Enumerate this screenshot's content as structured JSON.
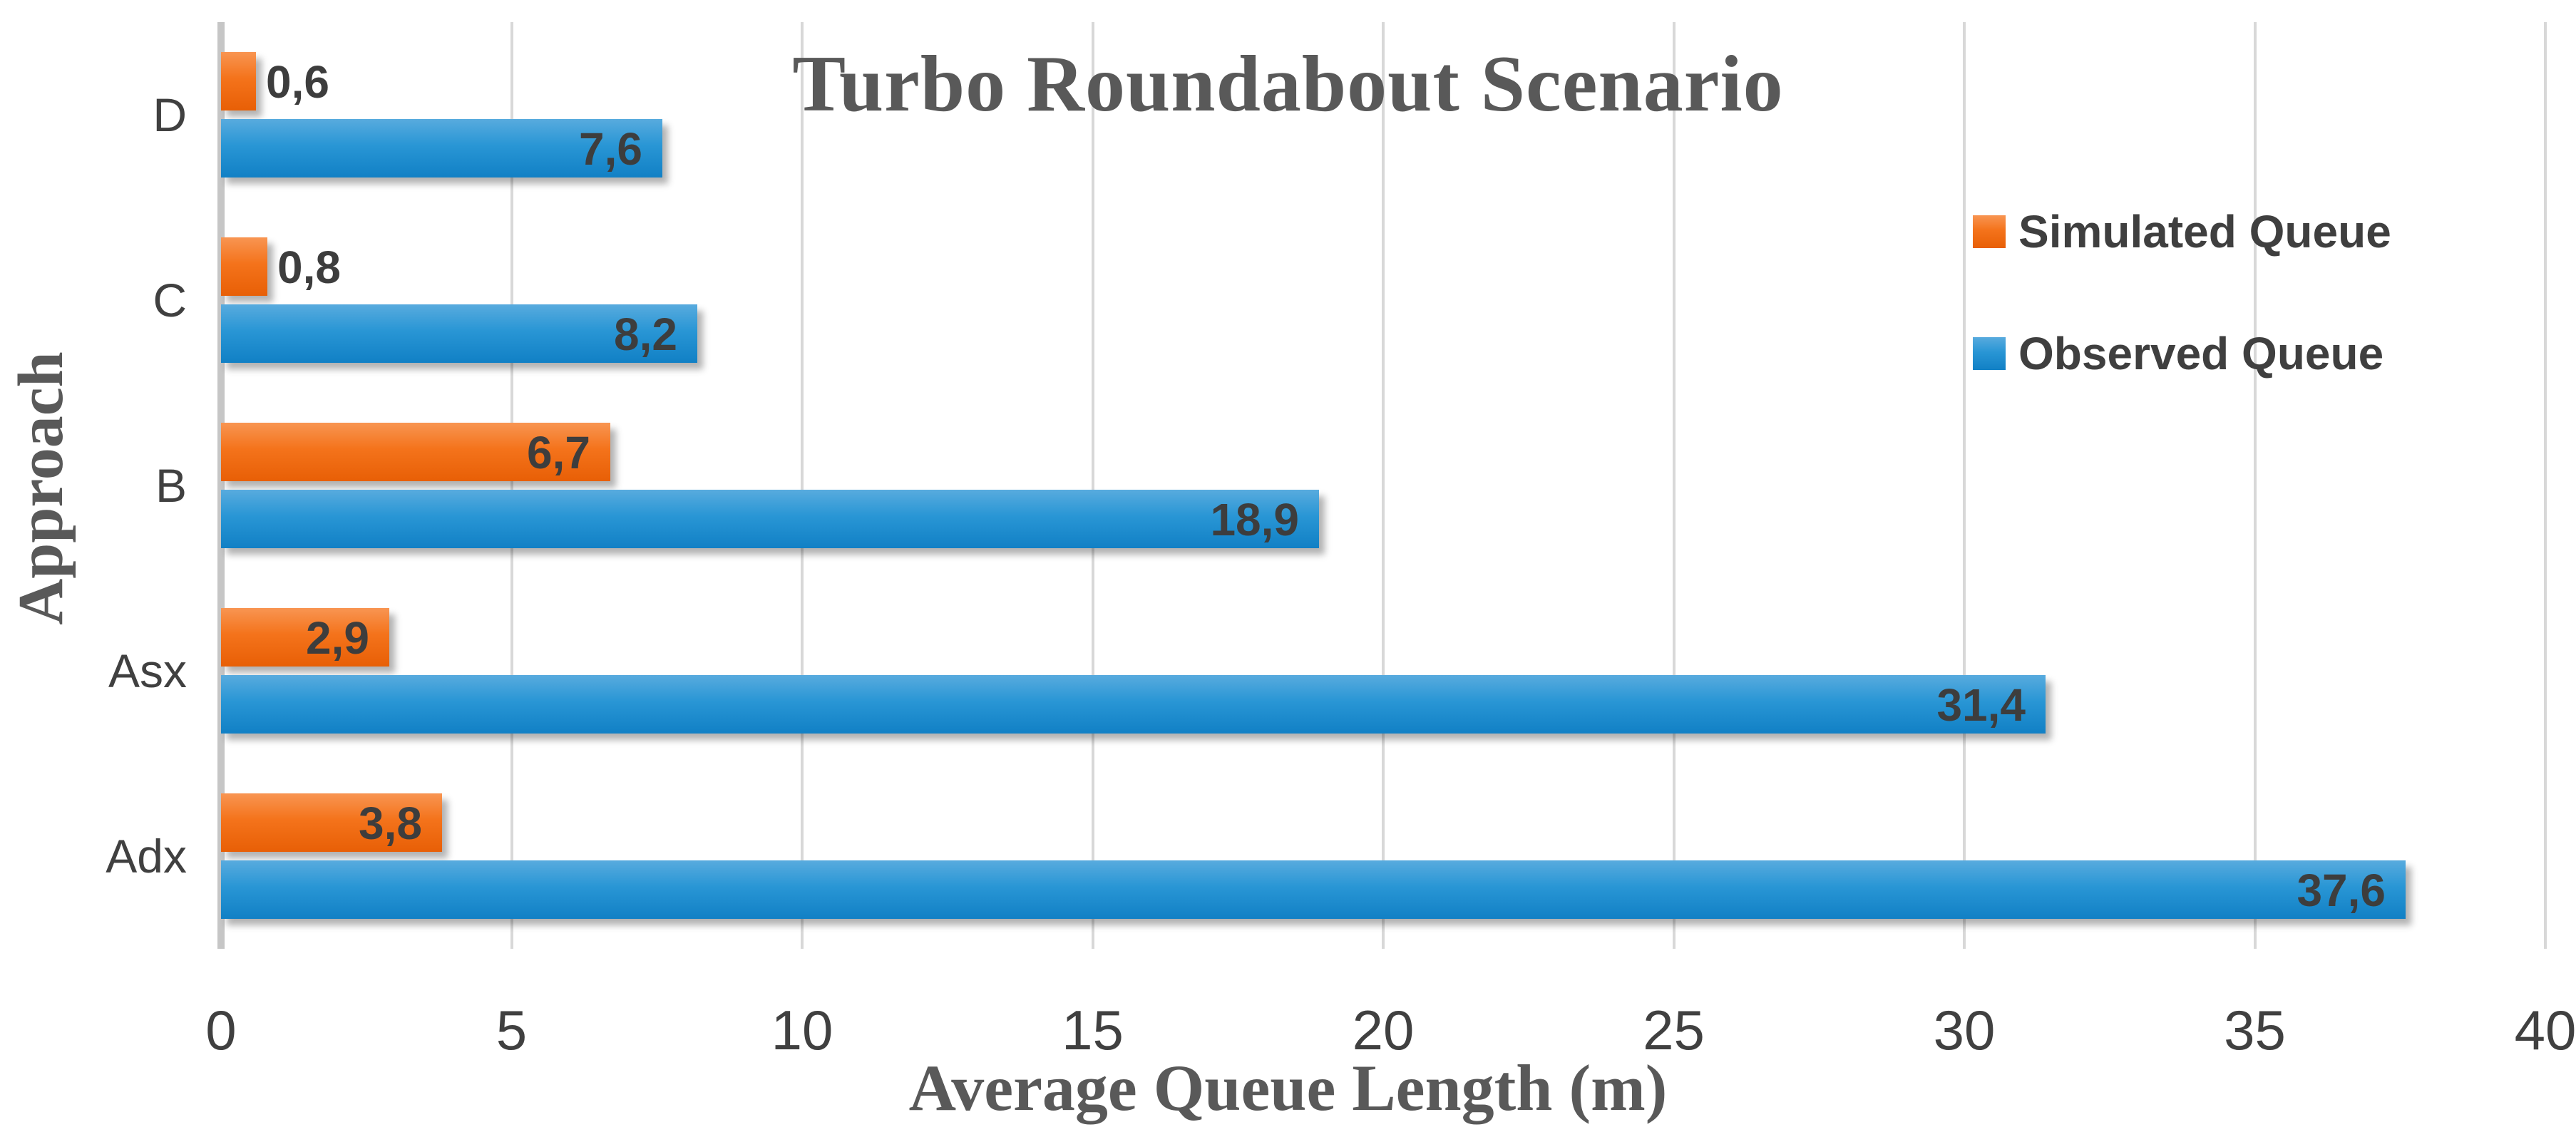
{
  "chart_data": {
    "type": "bar",
    "orientation": "horizontal",
    "title": "Turbo Roundabout Scenario",
    "xlabel": "Average Queue Length (m)",
    "ylabel": "Approach",
    "categories": [
      "D",
      "C",
      "B",
      "Asx",
      "Adx"
    ],
    "series": [
      {
        "name": "Simulated Queue",
        "values": [
          0.6,
          0.8,
          6.7,
          2.9,
          3.8
        ],
        "labels": [
          "0,6",
          "0,8",
          "6,7",
          "2,9",
          "3,8"
        ],
        "fill": {
          "top": "#F89552",
          "mid": "#F4731B",
          "bottom": "#E85F06"
        }
      },
      {
        "name": "Observed Queue",
        "values": [
          7.6,
          8.2,
          18.9,
          31.4,
          37.6
        ],
        "labels": [
          "7,6",
          "8,2",
          "18,9",
          "31,4",
          "37,6"
        ],
        "fill": {
          "top": "#58ABDE",
          "mid": "#2996D5",
          "bottom": "#1180C5"
        }
      }
    ],
    "xlim": [
      0,
      40
    ],
    "xticks": [
      0,
      5,
      10,
      15,
      20,
      25,
      30,
      35,
      40
    ],
    "xtick_labels": [
      "0",
      "5",
      "10",
      "15",
      "20",
      "25",
      "30",
      "35",
      "40"
    ],
    "grid": "vertical-only",
    "legend_position": "right-top",
    "decimal_separator": ","
  },
  "colors": {
    "grid": "#D8D8D8",
    "axis_line": "#C6C6C6",
    "tick_text": "#404040",
    "category_text": "#404040",
    "value_label_text": "#3D3D3D",
    "title_text": "#595959",
    "legend_text": "#3F3F3F",
    "background": "#FFFFFF"
  }
}
